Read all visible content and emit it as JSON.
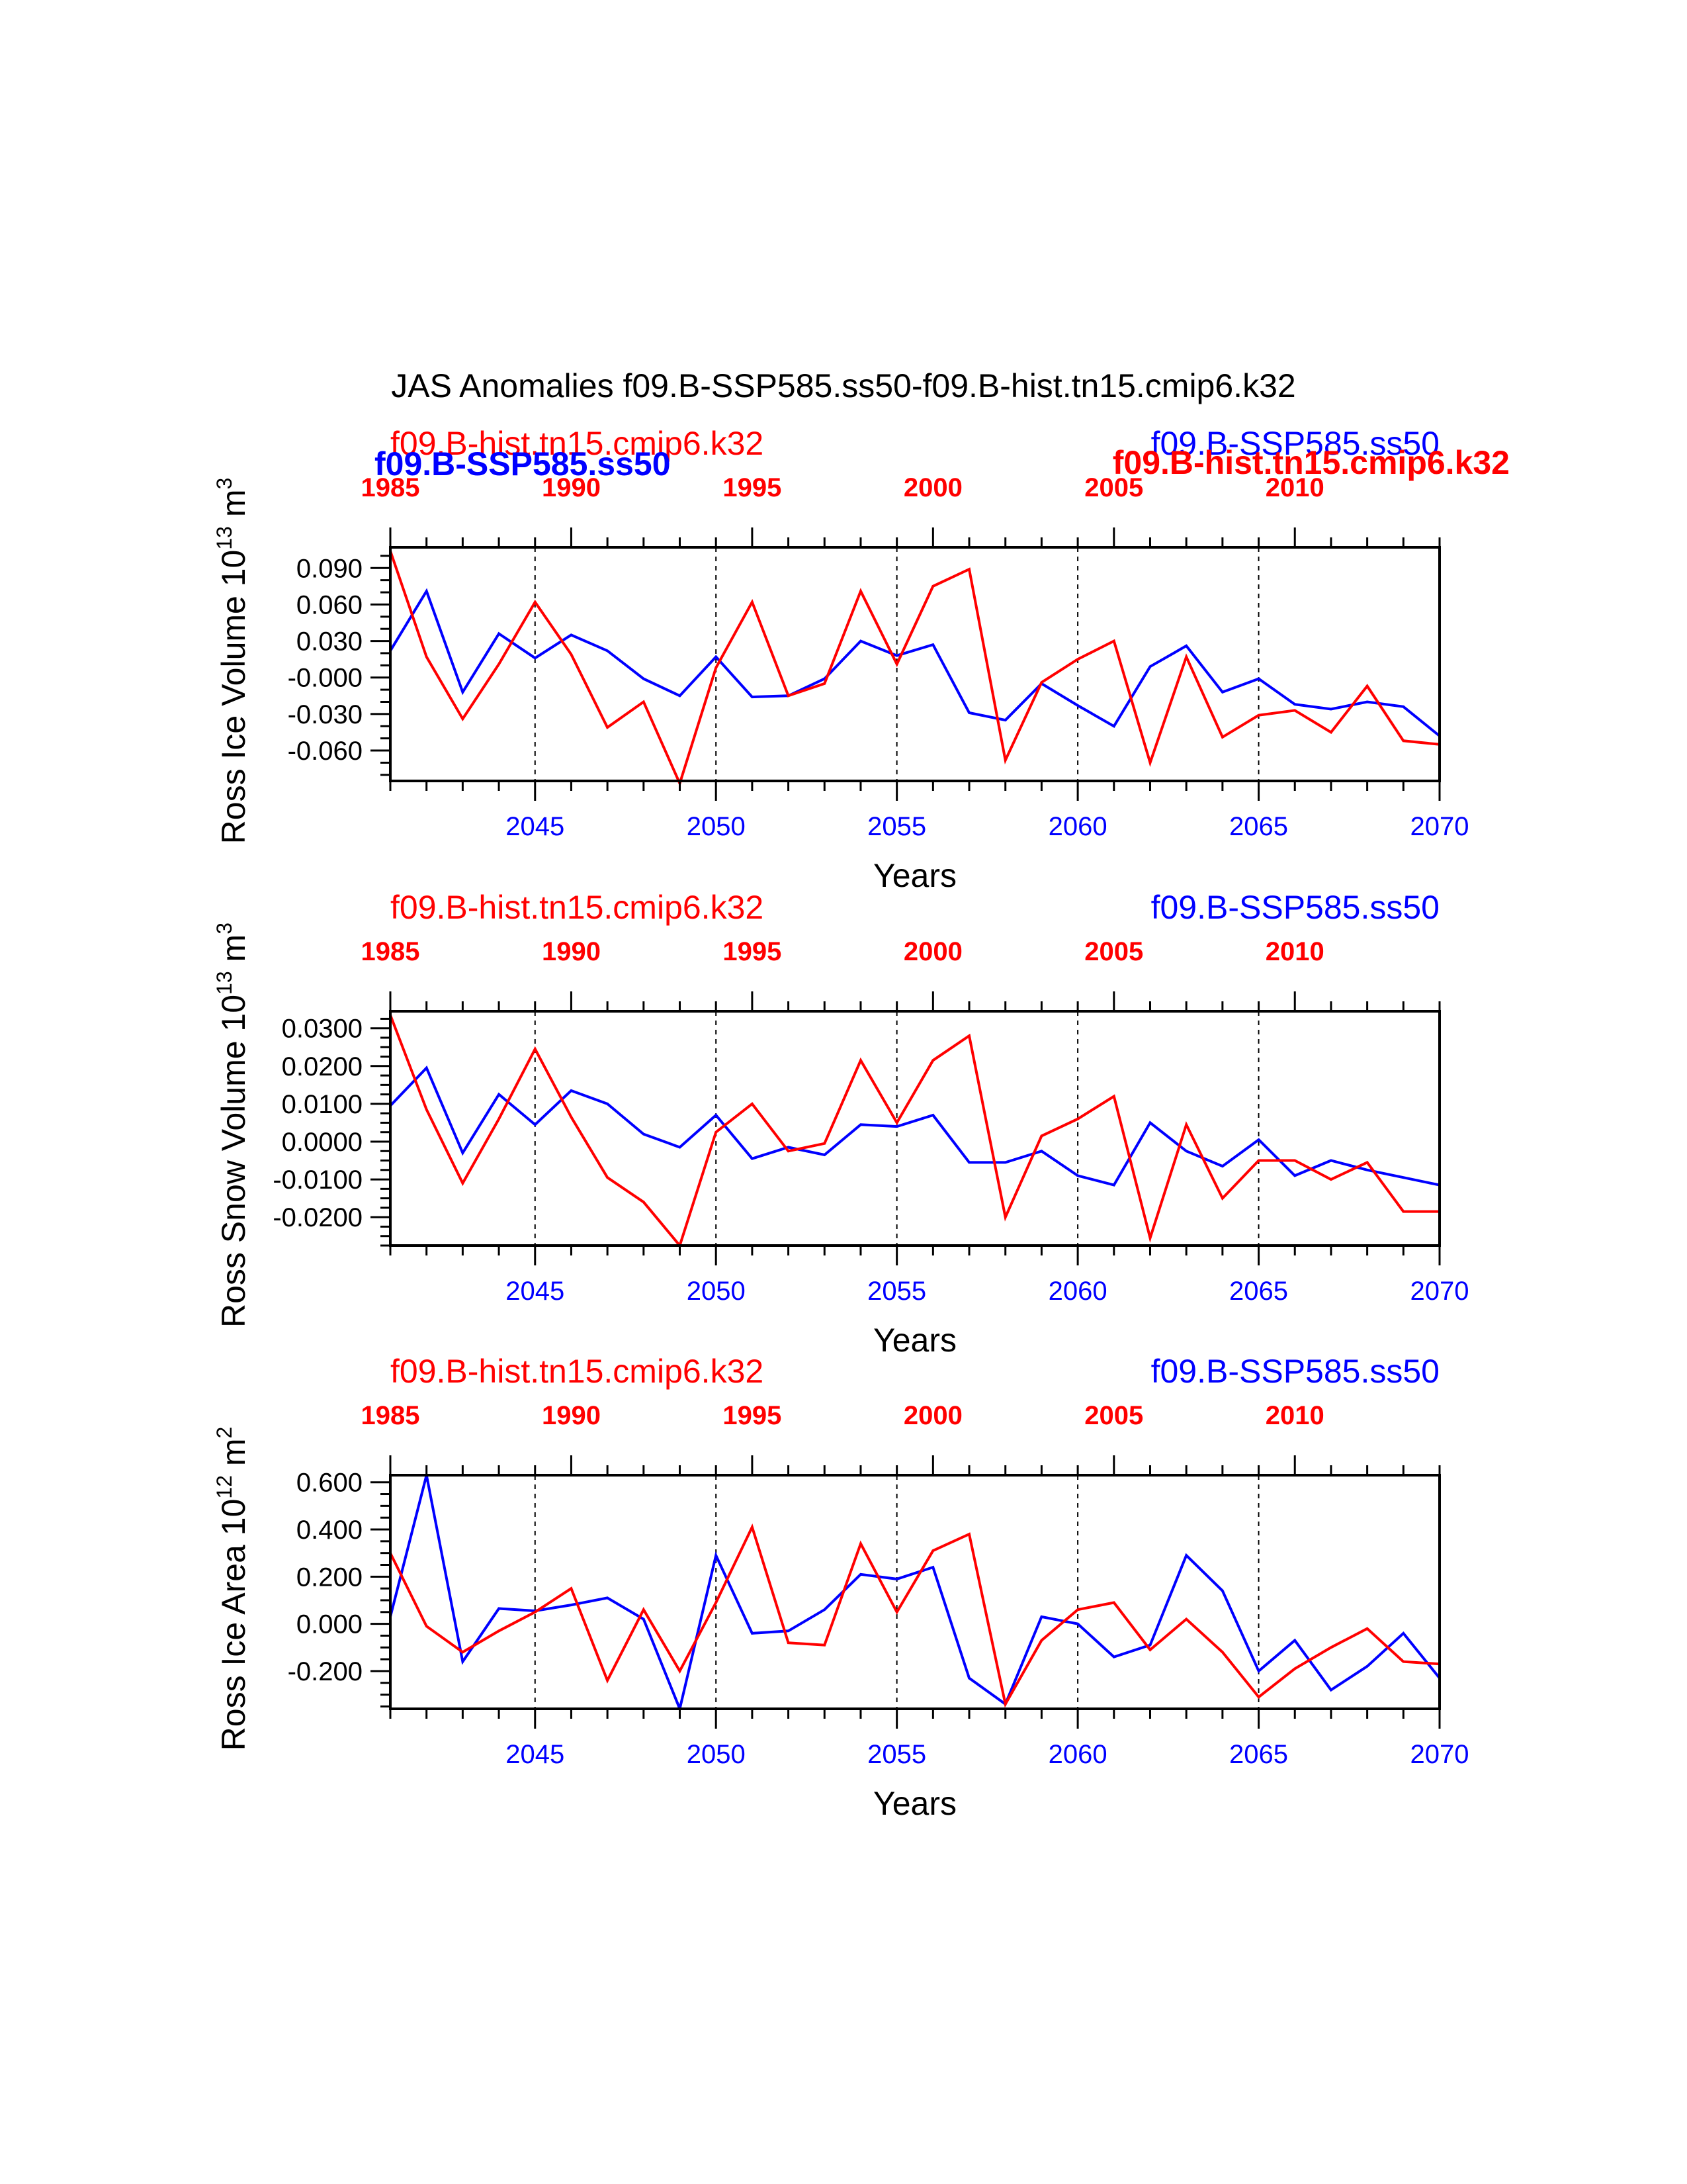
{
  "title": "JAS Anomalies f09.B-SSP585.ss50-f09.B-hist.tn15.cmip6.k32",
  "colors": {
    "red": "#ff0000",
    "blue": "#0000ff",
    "axis": "#000000"
  },
  "overlay_labels": {
    "top_left_blue_bold": "f09.B-SSP585.ss50",
    "top_right_red_bold": "f09.B-hist.tn15.cmip6.k32"
  },
  "chart_data": [
    {
      "type": "line",
      "ylabel_main": "Ross Ice Volume 10",
      "ylabel_exp": "13",
      "ylabel_unit": " m",
      "ylabel_unit_exp": "3",
      "xlabel": "Years",
      "left_title": "f09.B-hist.tn15.cmip6.k32",
      "right_title": "f09.B-SSP585.ss50",
      "ylim": [
        -0.085,
        0.107
      ],
      "yticks": [
        0.09,
        0.06,
        0.03,
        0.0,
        -0.03,
        -0.06
      ],
      "yticklabels": [
        "0.090",
        "0.060",
        "0.030",
        "-0.000",
        "-0.030",
        "-0.060"
      ],
      "yminor_step": 0.01,
      "bottom_axis": {
        "xlim": [
          2041,
          2070
        ],
        "ticks": [
          2045,
          2050,
          2055,
          2060,
          2065,
          2070
        ],
        "ticklabels": [
          "2045",
          "2050",
          "2055",
          "2060",
          "2065",
          "2070"
        ]
      },
      "top_axis": {
        "xlim": [
          1985,
          2014
        ],
        "ticks": [
          1985,
          1990,
          1995,
          2000,
          2005,
          2010
        ],
        "ticklabels": [
          "1985",
          "1990",
          "1995",
          "2000",
          "2005",
          "2010"
        ]
      },
      "vlines": [
        2045,
        2050,
        2055,
        2060,
        2065
      ],
      "series": [
        {
          "name": "f09.B-SSP585.ss50",
          "color": "#0000ff",
          "x": [
            2041,
            2042,
            2043,
            2044,
            2045,
            2046,
            2047,
            2048,
            2049,
            2050,
            2051,
            2052,
            2053,
            2054,
            2055,
            2056,
            2057,
            2058,
            2059,
            2060,
            2061,
            2062,
            2063,
            2064,
            2065,
            2066,
            2067,
            2068,
            2069,
            2070
          ],
          "values": [
            0.022,
            0.071,
            -0.012,
            0.036,
            0.016,
            0.035,
            0.022,
            -0.001,
            -0.015,
            0.017,
            -0.016,
            -0.015,
            -0.001,
            0.03,
            0.018,
            0.027,
            -0.029,
            -0.035,
            -0.005,
            -0.023,
            -0.04,
            0.009,
            0.026,
            -0.012,
            -0.001,
            -0.022,
            -0.026,
            -0.02,
            -0.024,
            -0.048
          ]
        },
        {
          "name": "f09.B-hist.tn15.cmip6.k32",
          "color": "#ff0000",
          "x": [
            2041,
            2042,
            2043,
            2044,
            2045,
            2046,
            2047,
            2048,
            2049,
            2050,
            2051,
            2052,
            2053,
            2054,
            2055,
            2056,
            2057,
            2058,
            2059,
            2060,
            2061,
            2062,
            2063,
            2064,
            2065,
            2066,
            2067,
            2068,
            2069,
            2070
          ],
          "values": [
            0.104,
            0.017,
            -0.034,
            0.011,
            0.062,
            0.019,
            -0.041,
            -0.02,
            -0.087,
            0.008,
            0.062,
            -0.015,
            -0.005,
            0.071,
            0.011,
            0.075,
            0.089,
            -0.068,
            -0.004,
            0.015,
            0.03,
            -0.07,
            0.017,
            -0.049,
            -0.031,
            -0.027,
            -0.045,
            -0.007,
            -0.052,
            -0.055
          ]
        }
      ]
    },
    {
      "type": "line",
      "ylabel_main": "Ross Snow Volume 10",
      "ylabel_exp": "13",
      "ylabel_unit": " m",
      "ylabel_unit_exp": "3",
      "xlabel": "Years",
      "left_title": "f09.B-hist.tn15.cmip6.k32",
      "right_title": "f09.B-SSP585.ss50",
      "ylim": [
        -0.0275,
        0.0345
      ],
      "yticks": [
        0.03,
        0.02,
        0.01,
        0.0,
        -0.01,
        -0.02
      ],
      "yticklabels": [
        "0.0300",
        "0.0200",
        "0.0100",
        "0.0000",
        "-0.0100",
        "-0.0200"
      ],
      "yminor_step": 0.0025,
      "bottom_axis": {
        "xlim": [
          2041,
          2070
        ],
        "ticks": [
          2045,
          2050,
          2055,
          2060,
          2065,
          2070
        ],
        "ticklabels": [
          "2045",
          "2050",
          "2055",
          "2060",
          "2065",
          "2070"
        ]
      },
      "top_axis": {
        "xlim": [
          1985,
          2014
        ],
        "ticks": [
          1985,
          1990,
          1995,
          2000,
          2005,
          2010
        ],
        "ticklabels": [
          "1985",
          "1990",
          "1995",
          "2000",
          "2005",
          "2010"
        ]
      },
      "vlines": [
        2045,
        2050,
        2055,
        2060,
        2065
      ],
      "series": [
        {
          "name": "f09.B-SSP585.ss50",
          "color": "#0000ff",
          "x": [
            2041,
            2042,
            2043,
            2044,
            2045,
            2046,
            2047,
            2048,
            2049,
            2050,
            2051,
            2052,
            2053,
            2054,
            2055,
            2056,
            2057,
            2058,
            2059,
            2060,
            2061,
            2062,
            2063,
            2064,
            2065,
            2066,
            2067,
            2068,
            2069,
            2070
          ],
          "values": [
            0.0095,
            0.0195,
            -0.003,
            0.0125,
            0.0045,
            0.0135,
            0.01,
            0.002,
            -0.0015,
            0.007,
            -0.0045,
            -0.0015,
            -0.0035,
            0.0045,
            0.004,
            0.007,
            -0.0055,
            -0.0055,
            -0.0025,
            -0.009,
            -0.0115,
            0.005,
            -0.0025,
            -0.0065,
            0.0005,
            -0.009,
            -0.005,
            -0.0075,
            -0.0095,
            -0.0115
          ]
        },
        {
          "name": "f09.B-hist.tn15.cmip6.k32",
          "color": "#ff0000",
          "x": [
            2041,
            2042,
            2043,
            2044,
            2045,
            2046,
            2047,
            2048,
            2049,
            2050,
            2051,
            2052,
            2053,
            2054,
            2055,
            2056,
            2057,
            2058,
            2059,
            2060,
            2061,
            2062,
            2063,
            2064,
            2065,
            2066,
            2067,
            2068,
            2069,
            2070
          ],
          "values": [
            0.0335,
            0.0085,
            -0.011,
            0.006,
            0.0245,
            0.0065,
            -0.0095,
            -0.016,
            -0.0275,
            0.0025,
            0.01,
            -0.0025,
            -0.0005,
            0.0215,
            0.005,
            0.0215,
            0.028,
            -0.02,
            0.0015,
            0.006,
            0.012,
            -0.0255,
            0.0045,
            -0.015,
            -0.005,
            -0.005,
            -0.01,
            -0.0055,
            -0.0185,
            -0.0185
          ]
        }
      ]
    },
    {
      "type": "line",
      "ylabel_main": "Ross Ice Area 10",
      "ylabel_exp": "12",
      "ylabel_unit": " m",
      "ylabel_unit_exp": "2",
      "xlabel": "Years",
      "left_title": "f09.B-hist.tn15.cmip6.k32",
      "right_title": "f09.B-SSP585.ss50",
      "ylim": [
        -0.36,
        0.63
      ],
      "yticks": [
        0.6,
        0.4,
        0.2,
        0.0,
        -0.2
      ],
      "yticklabels": [
        "0.600",
        "0.400",
        "0.200",
        "0.000",
        "-0.200"
      ],
      "yminor_step": 0.05,
      "bottom_axis": {
        "xlim": [
          2041,
          2070
        ],
        "ticks": [
          2045,
          2050,
          2055,
          2060,
          2065,
          2070
        ],
        "ticklabels": [
          "2045",
          "2050",
          "2055",
          "2060",
          "2065",
          "2070"
        ]
      },
      "top_axis": {
        "xlim": [
          1985,
          2014
        ],
        "ticks": [
          1985,
          1990,
          1995,
          2000,
          2005,
          2010
        ],
        "ticklabels": [
          "1985",
          "1990",
          "1995",
          "2000",
          "2005",
          "2010"
        ]
      },
      "vlines": [
        2045,
        2050,
        2055,
        2060,
        2065
      ],
      "series": [
        {
          "name": "f09.B-SSP585.ss50",
          "color": "#0000ff",
          "x": [
            2041,
            2042,
            2043,
            2044,
            2045,
            2046,
            2047,
            2048,
            2049,
            2050,
            2051,
            2052,
            2053,
            2054,
            2055,
            2056,
            2057,
            2058,
            2059,
            2060,
            2061,
            2062,
            2063,
            2064,
            2065,
            2066,
            2067,
            2068,
            2069,
            2070
          ],
          "values": [
            0.03,
            0.63,
            -0.16,
            0.065,
            0.055,
            0.08,
            0.11,
            0.02,
            -0.36,
            0.29,
            -0.04,
            -0.03,
            0.06,
            0.21,
            0.19,
            0.24,
            -0.23,
            -0.34,
            0.03,
            0.0,
            -0.14,
            -0.09,
            0.29,
            0.14,
            -0.2,
            -0.07,
            -0.28,
            -0.18,
            -0.04,
            -0.23
          ]
        },
        {
          "name": "f09.B-hist.tn15.cmip6.k32",
          "color": "#ff0000",
          "x": [
            2041,
            2042,
            2043,
            2044,
            2045,
            2046,
            2047,
            2048,
            2049,
            2050,
            2051,
            2052,
            2053,
            2054,
            2055,
            2056,
            2057,
            2058,
            2059,
            2060,
            2061,
            2062,
            2063,
            2064,
            2065,
            2066,
            2067,
            2068,
            2069,
            2070
          ],
          "values": [
            0.3,
            -0.01,
            -0.12,
            -0.03,
            0.05,
            0.15,
            -0.24,
            0.06,
            -0.2,
            0.09,
            0.41,
            -0.08,
            -0.09,
            0.34,
            0.05,
            0.31,
            0.38,
            -0.34,
            -0.07,
            0.06,
            0.09,
            -0.11,
            0.02,
            -0.12,
            -0.31,
            -0.19,
            -0.1,
            -0.02,
            -0.16,
            -0.17
          ]
        }
      ]
    }
  ]
}
